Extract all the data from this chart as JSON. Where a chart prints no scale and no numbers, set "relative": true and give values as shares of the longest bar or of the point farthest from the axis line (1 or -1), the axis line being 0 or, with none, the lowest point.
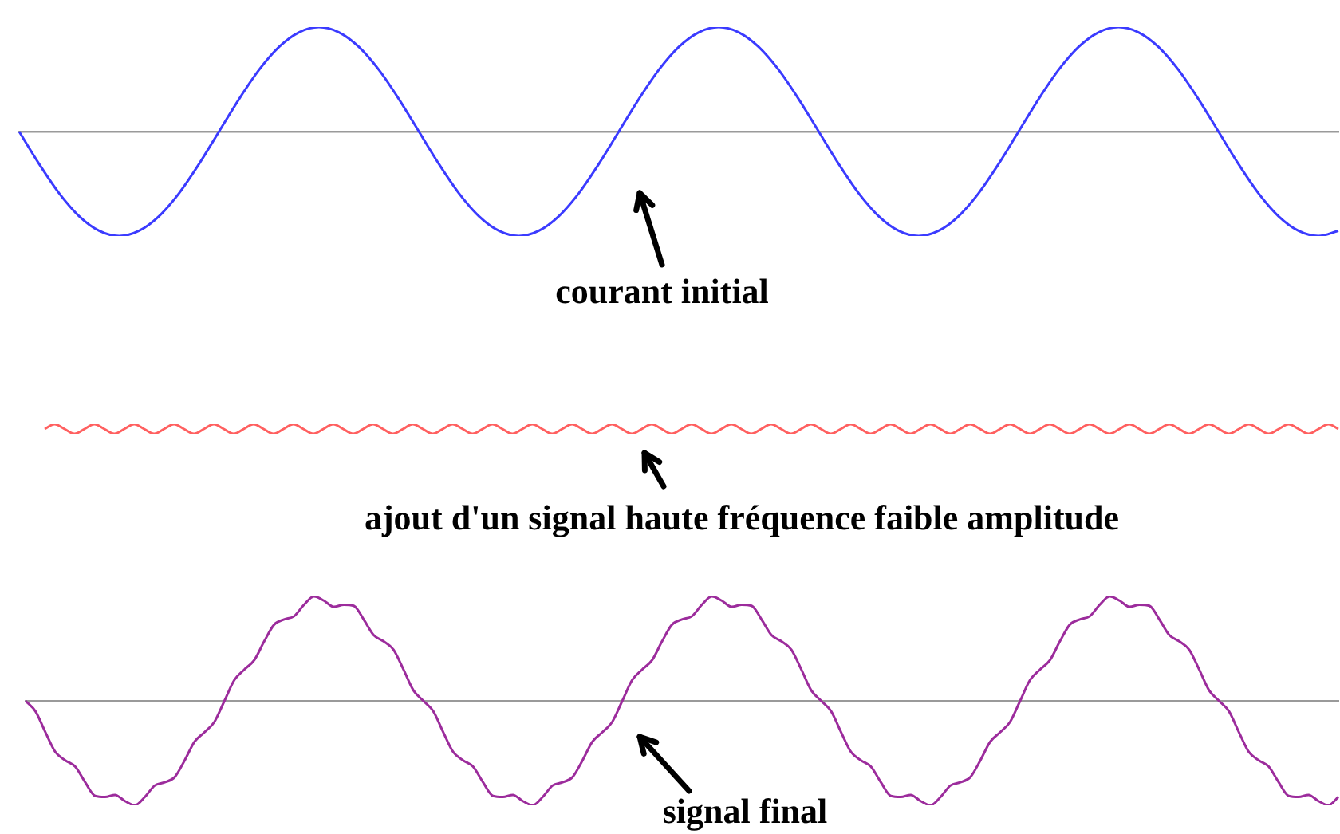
{
  "chart_data": [
    {
      "type": "line",
      "relative": true,
      "annotations": [
        "courant initial"
      ],
      "categories": [
        null,
        null,
        null,
        null,
        null,
        null,
        null,
        null,
        null,
        null,
        null,
        null,
        null,
        null,
        null,
        null,
        null,
        null,
        null,
        null,
        null,
        null,
        null,
        null,
        null,
        null,
        null,
        null,
        null,
        null,
        null,
        null,
        null,
        null,
        null,
        null,
        null,
        null,
        null,
        null,
        null,
        null,
        null,
        null,
        null,
        null,
        null,
        null,
        null,
        null,
        null,
        null,
        null,
        null,
        null,
        null,
        null,
        null,
        null,
        null,
        null,
        null,
        null,
        null,
        null,
        null,
        null
      ],
      "series": [
        {
          "color": "#3b3bff",
          "values": [
            0,
            -0.31,
            -0.59,
            -0.81,
            -0.95,
            -1,
            -0.95,
            -0.81,
            -0.59,
            -0.31,
            0,
            0.31,
            0.59,
            0.81,
            0.95,
            1,
            0.95,
            0.81,
            0.59,
            0.31,
            0,
            -0.31,
            -0.59,
            -0.81,
            -0.95,
            -1,
            -0.95,
            -0.81,
            -0.59,
            -0.31,
            0,
            0.31,
            0.59,
            0.81,
            0.95,
            1,
            0.95,
            0.81,
            0.59,
            0.31,
            0,
            -0.31,
            -0.59,
            -0.81,
            -0.95,
            -1,
            -0.95,
            -0.81,
            -0.59,
            -0.31,
            0,
            0.31,
            0.59,
            0.81,
            0.95,
            1,
            0.95,
            0.81,
            0.59,
            0.31,
            0,
            -0.31,
            -0.59,
            -0.81,
            -0.95,
            -1,
            -0.95
          ]
        }
      ]
    },
    {
      "type": "line",
      "relative": true,
      "annotations": [
        "ajout d'un signal haute fréquence faible amplitude"
      ],
      "categories": [
        null,
        null,
        null,
        null,
        null,
        null,
        null,
        null,
        null,
        null,
        null,
        null,
        null,
        null,
        null,
        null,
        null,
        null,
        null,
        null,
        null,
        null,
        null,
        null,
        null,
        null,
        null,
        null,
        null,
        null,
        null,
        null,
        null,
        null,
        null,
        null,
        null,
        null,
        null,
        null,
        null,
        null,
        null,
        null,
        null,
        null,
        null,
        null,
        null,
        null,
        null,
        null,
        null,
        null,
        null,
        null,
        null,
        null,
        null,
        null,
        null,
        null,
        null,
        null,
        null,
        null,
        null,
        null,
        null,
        null,
        null,
        null,
        null,
        null,
        null,
        null,
        null,
        null,
        null,
        null,
        null,
        null,
        null,
        null,
        null,
        null,
        null,
        null,
        null,
        null,
        null,
        null,
        null,
        null,
        null,
        null,
        null,
        null,
        null,
        null,
        null,
        null,
        null,
        null,
        null,
        null,
        null,
        null,
        null,
        null,
        null,
        null,
        null,
        null,
        null,
        null,
        null,
        null,
        null,
        null,
        null,
        null,
        null,
        null,
        null,
        null,
        null,
        null,
        null,
        null,
        null
      ],
      "series": [
        {
          "color": "#ff6060",
          "values": [
            0.5,
            1,
            0.5,
            0,
            0.5,
            1,
            0.5,
            0,
            0.5,
            1,
            0.5,
            0,
            0.5,
            1,
            0.5,
            0,
            0.5,
            1,
            0.5,
            0,
            0.5,
            1,
            0.5,
            0,
            0.5,
            1,
            0.5,
            0,
            0.5,
            1,
            0.5,
            0,
            0.5,
            1,
            0.5,
            0,
            0.5,
            1,
            0.5,
            0,
            0.5,
            1,
            0.5,
            0,
            0.5,
            1,
            0.5,
            0,
            0.5,
            1,
            0.5,
            0,
            0.5,
            1,
            0.5,
            0,
            0.5,
            1,
            0.5,
            0,
            0.5,
            1,
            0.5,
            0,
            0.5,
            1,
            0.5,
            0,
            0.5,
            1,
            0.5,
            0,
            0.5,
            1,
            0.5,
            0,
            0.5,
            1,
            0.5,
            0,
            0.5,
            1,
            0.5,
            0,
            0.5,
            1,
            0.5,
            0,
            0.5,
            1,
            0.5,
            0,
            0.5,
            1,
            0.5,
            0,
            0.5,
            1,
            0.5,
            0,
            0.5,
            1,
            0.5,
            0,
            0.5,
            1,
            0.5,
            0,
            0.5,
            1,
            0.5,
            0,
            0.5,
            1,
            0.5,
            0,
            0.5,
            1,
            0.5,
            0,
            0.5,
            1,
            0.5,
            0,
            0.5,
            1,
            0.5,
            0,
            0.5,
            1,
            0.5
          ]
        }
      ]
    },
    {
      "type": "line",
      "relative": true,
      "annotations": [
        "signal final"
      ],
      "categories": [
        null,
        null,
        null,
        null,
        null,
        null,
        null,
        null,
        null,
        null,
        null,
        null,
        null,
        null,
        null,
        null,
        null,
        null,
        null,
        null,
        null,
        null,
        null,
        null,
        null,
        null,
        null,
        null,
        null,
        null,
        null,
        null,
        null,
        null,
        null,
        null,
        null,
        null,
        null,
        null,
        null,
        null,
        null,
        null,
        null,
        null,
        null,
        null,
        null,
        null,
        null,
        null,
        null,
        null,
        null,
        null,
        null,
        null,
        null,
        null,
        null,
        null,
        null,
        null,
        null,
        null,
        null,
        null,
        null,
        null,
        null,
        null,
        null,
        null,
        null,
        null,
        null,
        null,
        null,
        null,
        null,
        null,
        null,
        null,
        null,
        null,
        null,
        null,
        null,
        null,
        null,
        null,
        null,
        null,
        null,
        null,
        null,
        null,
        null,
        null,
        null,
        null,
        null,
        null,
        null,
        null,
        null,
        null,
        null,
        null,
        null,
        null,
        null,
        null,
        null,
        null,
        null,
        null,
        null,
        null,
        null,
        null,
        null,
        null,
        null,
        null,
        null,
        null,
        null,
        null,
        null,
        null,
        null
      ],
      "series": [
        {
          "color": "#9c2c9c",
          "values": [
            0,
            -0.1,
            -0.3,
            -0.49,
            -0.57,
            -0.63,
            -0.78,
            -0.91,
            -0.92,
            -0.9,
            -0.96,
            -1,
            -0.92,
            -0.81,
            -0.78,
            -0.73,
            -0.57,
            -0.39,
            -0.3,
            -0.2,
            0,
            0.2,
            0.3,
            0.39,
            0.57,
            0.73,
            0.78,
            0.81,
            0.92,
            1,
            0.96,
            0.9,
            0.92,
            0.91,
            0.78,
            0.63,
            0.57,
            0.49,
            0.3,
            0.1,
            0,
            -0.1,
            -0.3,
            -0.49,
            -0.57,
            -0.63,
            -0.78,
            -0.91,
            -0.92,
            -0.9,
            -0.96,
            -1,
            -0.92,
            -0.81,
            -0.78,
            -0.73,
            -0.57,
            -0.39,
            -0.3,
            -0.2,
            0,
            0.2,
            0.3,
            0.39,
            0.57,
            0.73,
            0.78,
            0.81,
            0.92,
            1,
            0.96,
            0.9,
            0.92,
            0.91,
            0.78,
            0.63,
            0.57,
            0.49,
            0.3,
            0.1,
            0,
            -0.1,
            -0.3,
            -0.49,
            -0.57,
            -0.63,
            -0.78,
            -0.91,
            -0.92,
            -0.9,
            -0.96,
            -1,
            -0.92,
            -0.81,
            -0.78,
            -0.73,
            -0.57,
            -0.39,
            -0.3,
            -0.2,
            0,
            0.2,
            0.3,
            0.39,
            0.57,
            0.73,
            0.78,
            0.81,
            0.92,
            1,
            0.96,
            0.9,
            0.92,
            0.91,
            0.78,
            0.63,
            0.57,
            0.49,
            0.3,
            0.1,
            0,
            -0.1,
            -0.3,
            -0.49,
            -0.57,
            -0.63,
            -0.78,
            -0.91,
            -0.92,
            -0.9,
            -0.96,
            -1,
            -0.92
          ]
        }
      ]
    }
  ]
}
